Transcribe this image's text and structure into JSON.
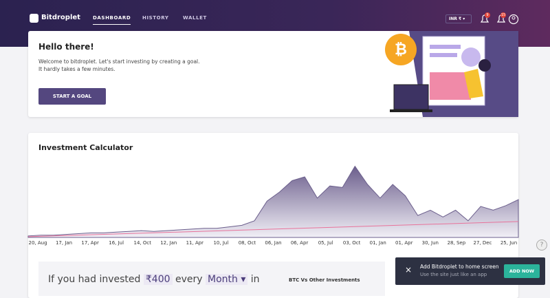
{
  "header": {
    "logo": "Bitdroplet",
    "nav": [
      "DASHBOARD",
      "HISTORY",
      "WALLET"
    ],
    "currency": "INR ₹ ▾",
    "badges": [
      "9",
      "15"
    ]
  },
  "welcome": {
    "title": "Hello there!",
    "lines": [
      "Welcome to bitdroplet. Let's start investing by creating a goal.",
      "It hardly takes a few minutes."
    ],
    "button": "START A GOAL"
  },
  "calculator": {
    "title": "Investment Calculator",
    "chart": {
      "type": "area",
      "ylim": [
        0,
        100
      ],
      "x_labels": [
        "20, Aug",
        "17, Jan",
        "17, Apr",
        "16, Jul",
        "14, Oct",
        "12, Jan",
        "11, Apr",
        "10, Jul",
        "08, Oct",
        "06, Jan",
        "06, Apr",
        "05, Jul",
        "03, Oct",
        "01, Jan",
        "01, Apr",
        "30, Jun",
        "28, Sep",
        "27, Dec",
        "25, Jun"
      ],
      "series": [
        {
          "color": "#6b5e8c",
          "values": [
            2,
            3,
            3,
            4,
            5,
            6,
            6,
            7,
            8,
            9,
            8,
            9,
            10,
            11,
            12,
            12,
            14,
            16,
            22,
            48,
            60,
            75,
            80,
            52,
            68,
            66,
            94,
            70,
            52,
            70,
            55,
            29,
            36,
            27,
            36,
            22,
            41,
            36,
            42,
            50
          ]
        },
        {
          "color": "#e8729a",
          "values": [
            1,
            21
          ]
        }
      ]
    },
    "sentence": [
      "If you had invested",
      "₹400",
      "every",
      "Month ▾",
      "in"
    ],
    "comparison_title": "BTC Vs Other Investments"
  },
  "toast": {
    "title": "Add Bitdroplet to home screen",
    "subtitle": "Use the site just like an app",
    "button": "ADD NOW"
  }
}
